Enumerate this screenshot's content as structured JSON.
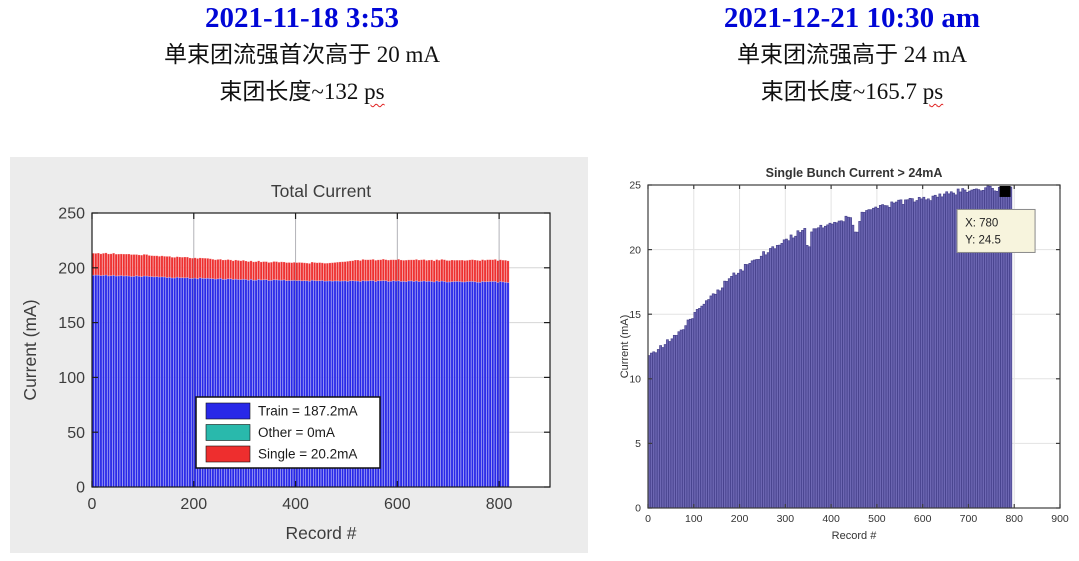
{
  "page": {
    "background": "#ffffff",
    "accent_blue": "#0006d6"
  },
  "panels": [
    {
      "header": {
        "date": "2021-11-18 3:53",
        "line1": "单束团流强首次高于 20 mA",
        "line2_prefix": "束团长度~132 ",
        "line2_suffix": "ps"
      }
    },
    {
      "header": {
        "date": "2021-12-21 10:30 am",
        "line1": "单束团流强高于 24 mA",
        "line2_prefix": "束团长度~165.7 ",
        "line2_suffix": "ps"
      }
    }
  ],
  "chart_data": [
    {
      "type": "bar",
      "variant": "stacked",
      "title": "Total Current",
      "xlabel": "Record #",
      "ylabel": "Current (mA)",
      "xlim": [
        0,
        900
      ],
      "ylim": [
        0,
        250
      ],
      "xticks": [
        0,
        200,
        400,
        600,
        800
      ],
      "yticks": [
        0,
        50,
        100,
        150,
        200,
        250
      ],
      "grid": true,
      "figure_bg": "#ececec",
      "legend_position": "lower-center",
      "bar_extent": [
        0,
        820
      ],
      "bar_step": 5,
      "series": [
        {
          "name": "Train = 187.2mA",
          "value_mA": 187.2,
          "color": "#2828e8",
          "edge": "rgba(255,255,255,0.32)",
          "noise": 0.5,
          "envelope": [
            [
              0,
              193.5
            ],
            [
              50,
              192.8
            ],
            [
              100,
              192.2
            ],
            [
              150,
              191.3
            ],
            [
              200,
              190.5
            ],
            [
              250,
              190.0
            ],
            [
              300,
              189.3
            ],
            [
              350,
              188.8
            ],
            [
              400,
              188.4
            ],
            [
              450,
              188.2
            ],
            [
              500,
              188.0
            ],
            [
              600,
              187.8
            ],
            [
              700,
              187.5
            ],
            [
              820,
              187.0
            ]
          ]
        },
        {
          "name": "Other = 0mA",
          "value_mA": 0,
          "color": "#29b9ac",
          "edge": "rgba(255,255,255,0.32)",
          "noise": 0,
          "envelope": [
            [
              0,
              0
            ],
            [
              820,
              0
            ]
          ]
        },
        {
          "name": "Single = 20.2mA",
          "value_mA": 20.2,
          "color": "#ee2e2e",
          "edge": "rgba(255,255,255,0.35)",
          "noise": 0.3,
          "envelope": [
            [
              0,
              20.0
            ],
            [
              50,
              20.0
            ],
            [
              100,
              19.5
            ],
            [
              150,
              19.0
            ],
            [
              200,
              18.5
            ],
            [
              250,
              17.5
            ],
            [
              300,
              17.0
            ],
            [
              350,
              16.5
            ],
            [
              400,
              16.3
            ],
            [
              450,
              16.3
            ],
            [
              480,
              17.0
            ],
            [
              520,
              19.0
            ],
            [
              560,
              19.3
            ],
            [
              600,
              19.4
            ],
            [
              700,
              19.6
            ],
            [
              820,
              20.0
            ]
          ]
        }
      ]
    },
    {
      "type": "bar",
      "variant": "single",
      "title": "Single Bunch Current > 24mA",
      "xlabel": "Record #",
      "ylabel": "Current (mA)",
      "xlim": [
        0,
        900
      ],
      "ylim": [
        0,
        25
      ],
      "xticks": [
        0,
        100,
        200,
        300,
        400,
        500,
        600,
        700,
        800,
        900
      ],
      "yticks": [
        0,
        5,
        10,
        15,
        20,
        25
      ],
      "grid": true,
      "figure_bg": "#ffffff",
      "bar_extent": [
        0,
        795
      ],
      "bar_step": 5,
      "series": [
        {
          "name": "Single Bunch Current",
          "color": "#6e68b4",
          "edge": "#46418c",
          "noise": 0.22,
          "envelope": [
            [
              0,
              11.9
            ],
            [
              20,
              12.3
            ],
            [
              40,
              12.9
            ],
            [
              60,
              13.4
            ],
            [
              80,
              14.2
            ],
            [
              100,
              15.0
            ],
            [
              120,
              15.8
            ],
            [
              140,
              16.5
            ],
            [
              160,
              17.2
            ],
            [
              180,
              17.9
            ],
            [
              200,
              18.4
            ],
            [
              220,
              18.9
            ],
            [
              240,
              19.4
            ],
            [
              260,
              19.9
            ],
            [
              280,
              20.3
            ],
            [
              300,
              20.8
            ],
            [
              320,
              21.2
            ],
            [
              340,
              21.5
            ],
            [
              348,
              19.9
            ],
            [
              356,
              21.4
            ],
            [
              380,
              21.8
            ],
            [
              400,
              22.0
            ],
            [
              420,
              22.3
            ],
            [
              440,
              22.5
            ],
            [
              452,
              21.0
            ],
            [
              464,
              22.9
            ],
            [
              480,
              23.1
            ],
            [
              500,
              23.3
            ],
            [
              520,
              23.4
            ],
            [
              540,
              23.6
            ],
            [
              560,
              23.7
            ],
            [
              580,
              23.8
            ],
            [
              600,
              23.9
            ],
            [
              620,
              24.0
            ],
            [
              640,
              24.2
            ],
            [
              660,
              24.4
            ],
            [
              680,
              24.5
            ],
            [
              700,
              24.7
            ],
            [
              720,
              24.6
            ],
            [
              740,
              24.8
            ],
            [
              760,
              24.7
            ],
            [
              780,
              24.5
            ],
            [
              795,
              24.7
            ]
          ]
        }
      ],
      "annotation": {
        "x": 780,
        "y": 24.5,
        "lines": [
          "X: 780",
          "Y: 24.5"
        ],
        "marker": "black-square",
        "box_fill": "#f7f4dd",
        "box_border": "#8a8a8a"
      }
    }
  ]
}
